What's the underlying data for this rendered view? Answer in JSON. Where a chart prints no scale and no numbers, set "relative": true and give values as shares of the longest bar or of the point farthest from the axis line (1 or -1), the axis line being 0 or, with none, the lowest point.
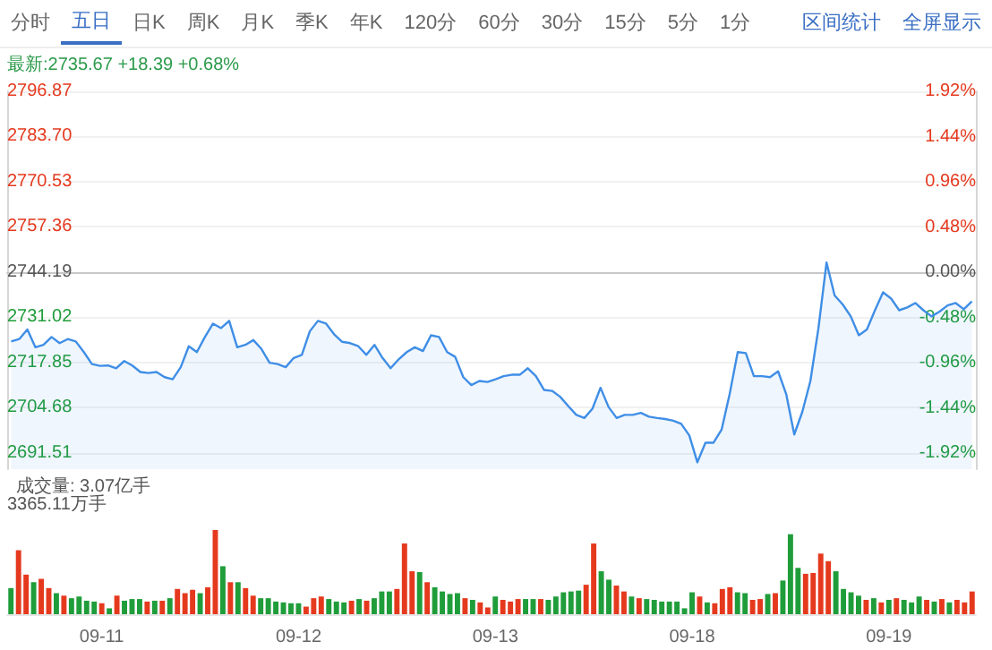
{
  "chart_data": [
    {
      "type": "area",
      "subtitle": "最新:2735.67 +18.39 +0.68%",
      "annotations": [
        "分时",
        "五日",
        "日K",
        "周K",
        "月K",
        "季K",
        "年K",
        "120分",
        "60分",
        "30分",
        "15分",
        "5分",
        "1分",
        "区间统计",
        "全屏显示"
      ],
      "color": "#3f8ee6",
      "categories": [
        null,
        null,
        null,
        null,
        null,
        null,
        null,
        null,
        null,
        null,
        null,
        null,
        null,
        null,
        null,
        null,
        null,
        null,
        null,
        null,
        null,
        null,
        null,
        null,
        null,
        null,
        null,
        null,
        null,
        null,
        null,
        null,
        null,
        null,
        null,
        null,
        null,
        null,
        null,
        null,
        null,
        null,
        null,
        null,
        null,
        null,
        null,
        null,
        null,
        null,
        null,
        null,
        null,
        null,
        null,
        null,
        null,
        null,
        null,
        null,
        null,
        null,
        null,
        null,
        null,
        null,
        null,
        null,
        null,
        null,
        null,
        null,
        null,
        null,
        null,
        null,
        null,
        null,
        null,
        null,
        null,
        null,
        null,
        null,
        null,
        null,
        null,
        null,
        null,
        null,
        null,
        null,
        null,
        null,
        null,
        null,
        null,
        null,
        null,
        null,
        null,
        null,
        null,
        null,
        null,
        null,
        null,
        null,
        null,
        null,
        null,
        null,
        null,
        null,
        null,
        null,
        null,
        null,
        null,
        null
      ],
      "values": [
        2724.0,
        2724.7,
        2727.5,
        2722.3,
        2723.0,
        2725.3,
        2723.5,
        2724.7,
        2724.0,
        2720.9,
        2717.4,
        2716.9,
        2717.0,
        2716.2,
        2718.3,
        2717.0,
        2715.1,
        2714.8,
        2715.1,
        2713.6,
        2713.0,
        2716.5,
        2722.6,
        2720.9,
        2725.3,
        2729.2,
        2727.9,
        2730.0,
        2722.3,
        2723.0,
        2724.4,
        2721.8,
        2717.8,
        2717.4,
        2716.5,
        2719.2,
        2720.1,
        2727.0,
        2730.0,
        2729.2,
        2726.1,
        2723.9,
        2723.5,
        2722.6,
        2720.1,
        2723.0,
        2719.2,
        2716.2,
        2718.8,
        2720.9,
        2722.3,
        2721.2,
        2725.8,
        2725.3,
        2720.9,
        2719.5,
        2713.6,
        2711.3,
        2712.5,
        2712.2,
        2713.0,
        2713.9,
        2714.3,
        2714.3,
        2716.2,
        2713.9,
        2709.9,
        2709.6,
        2707.9,
        2705.2,
        2702.6,
        2701.7,
        2704.4,
        2710.5,
        2704.9,
        2701.7,
        2702.6,
        2702.6,
        2703.2,
        2702.1,
        2701.7,
        2701.4,
        2700.9,
        2700.0,
        2696.6,
        2688.8,
        2694.5,
        2694.5,
        2698.3,
        2708.7,
        2720.9,
        2720.6,
        2713.9,
        2713.9,
        2713.6,
        2715.3,
        2708.7,
        2696.9,
        2703.5,
        2712.5,
        2727.9,
        2747.0,
        2737.4,
        2734.8,
        2731.3,
        2725.8,
        2727.5,
        2733.1,
        2738.3,
        2736.5,
        2733.1,
        2733.9,
        2735.2,
        2733.1,
        2731.3,
        2732.7,
        2734.5,
        2735.2,
        2733.4,
        2735.7
      ],
      "ylim": [
        2686.8,
        2796.87
      ],
      "yticks": [
        2796.87,
        {
          "value": 2783.7,
          "label": "2783.70"
        },
        2770.53,
        2757.36,
        2744.19,
        2731.02,
        2717.85,
        2704.68,
        2691.51
      ],
      "y2lim": [
        -2.09,
        1.92
      ],
      "y2ticks": [
        {
          "value": 1.92,
          "label": "1.92%"
        },
        {
          "value": 1.44,
          "label": "1.44%"
        },
        {
          "value": 0.96,
          "label": "0.96%"
        },
        {
          "value": 0.48,
          "label": "0.48%"
        },
        {
          "value": 0,
          "label": "0.00%"
        },
        {
          "value": -0.48,
          "label": "-0.48%"
        },
        {
          "value": -0.96,
          "label": "-0.96%"
        },
        {
          "value": -1.44,
          "label": "-1.44%"
        },
        {
          "value": -1.92,
          "label": "-1.92%"
        }
      ],
      "grid": "y",
      "tick_labels": "y"
    },
    {
      "type": "bar",
      "title": "成交量: 3.07亿手",
      "annotations": [
        "3365.11万手"
      ],
      "relative": true,
      "categories": [
        null,
        null,
        null,
        null,
        null,
        null,
        null,
        null,
        null,
        null,
        null,
        null,
        "09-11",
        null,
        null,
        null,
        null,
        null,
        null,
        null,
        null,
        null,
        null,
        null,
        null,
        null,
        null,
        null,
        null,
        null,
        null,
        null,
        null,
        null,
        null,
        null,
        null,
        null,
        "09-12",
        null,
        null,
        null,
        null,
        null,
        null,
        null,
        null,
        null,
        null,
        null,
        null,
        null,
        null,
        null,
        null,
        null,
        null,
        null,
        null,
        null,
        null,
        null,
        null,
        null,
        "09-13",
        null,
        null,
        null,
        null,
        null,
        null,
        null,
        null,
        null,
        null,
        null,
        null,
        null,
        null,
        null,
        null,
        null,
        null,
        null,
        null,
        null,
        null,
        null,
        null,
        null,
        "09-18",
        null,
        null,
        null,
        null,
        null,
        null,
        null,
        null,
        null,
        null,
        null,
        null,
        null,
        null,
        null,
        null,
        null,
        null,
        null,
        null,
        null,
        null,
        null,
        null,
        null,
        "09-19",
        null,
        null,
        null,
        null,
        null,
        null,
        null,
        null,
        null,
        null,
        null
      ],
      "values": [
        0.31,
        0.76,
        0.47,
        0.38,
        0.42,
        0.31,
        0.25,
        0.22,
        0.19,
        0.21,
        0.16,
        0.15,
        0.13,
        0.07,
        0.22,
        0.16,
        0.18,
        0.18,
        0.15,
        0.16,
        0.16,
        0.19,
        0.3,
        0.25,
        0.29,
        0.25,
        0.32,
        1.0,
        0.57,
        0.38,
        0.38,
        0.31,
        0.22,
        0.19,
        0.19,
        0.15,
        0.14,
        0.13,
        0.13,
        0.09,
        0.19,
        0.21,
        0.18,
        0.15,
        0.14,
        0.16,
        0.18,
        0.16,
        0.19,
        0.27,
        0.27,
        0.3,
        0.84,
        0.51,
        0.5,
        0.38,
        0.32,
        0.27,
        0.24,
        0.25,
        0.19,
        0.17,
        0.14,
        0.08,
        0.21,
        0.17,
        0.15,
        0.18,
        0.18,
        0.18,
        0.18,
        0.17,
        0.21,
        0.26,
        0.27,
        0.28,
        0.35,
        0.84,
        0.51,
        0.41,
        0.34,
        0.27,
        0.21,
        0.19,
        0.18,
        0.17,
        0.15,
        0.15,
        0.15,
        0.07,
        0.26,
        0.21,
        0.14,
        0.13,
        0.3,
        0.32,
        0.26,
        0.25,
        0.17,
        0.18,
        0.24,
        0.25,
        0.4,
        0.95,
        0.55,
        0.48,
        0.49,
        0.72,
        0.63,
        0.51,
        0.3,
        0.26,
        0.22,
        0.17,
        0.19,
        0.14,
        0.17,
        0.19,
        0.17,
        0.14,
        0.21,
        0.17,
        0.15,
        0.18,
        0.14,
        0.17,
        0.14,
        0.27
      ],
      "colors": [
        "#1f9d3a",
        "#e5391e",
        "#e5391e",
        "#1f9d3a",
        "#e5391e",
        "#e5391e",
        "#1f9d3a",
        "#e5391e",
        "#1f9d3a",
        "#1f9d3a",
        "#1f9d3a",
        "#1f9d3a",
        "#e5391e",
        "#1f9d3a",
        "#e5391e",
        "#1f9d3a",
        "#1f9d3a",
        "#1f9d3a",
        "#e5391e",
        "#1f9d3a",
        "#e5391e",
        "#1f9d3a",
        "#e5391e",
        "#e5391e",
        "#e5391e",
        "#1f9d3a",
        "#e5391e",
        "#e5391e",
        "#1f9d3a",
        "#e5391e",
        "#1f9d3a",
        "#e5391e",
        "#e5391e",
        "#1f9d3a",
        "#1f9d3a",
        "#1f9d3a",
        "#1f9d3a",
        "#1f9d3a",
        "#1f9d3a",
        "#e5391e",
        "#e5391e",
        "#e5391e",
        "#1f9d3a",
        "#1f9d3a",
        "#1f9d3a",
        "#e5391e",
        "#1f9d3a",
        "#e5391e",
        "#1f9d3a",
        "#1f9d3a",
        "#1f9d3a",
        "#e5391e",
        "#e5391e",
        "#e5391e",
        "#1f9d3a",
        "#e5391e",
        "#1f9d3a",
        "#1f9d3a",
        "#1f9d3a",
        "#1f9d3a",
        "#e5391e",
        "#1f9d3a",
        "#e5391e",
        "#e5391e",
        "#1f9d3a",
        "#e5391e",
        "#e5391e",
        "#e5391e",
        "#1f9d3a",
        "#1f9d3a",
        "#e5391e",
        "#1f9d3a",
        "#1f9d3a",
        "#1f9d3a",
        "#1f9d3a",
        "#1f9d3a",
        "#e5391e",
        "#e5391e",
        "#1f9d3a",
        "#1f9d3a",
        "#e5391e",
        "#e5391e",
        "#1f9d3a",
        "#e5391e",
        "#1f9d3a",
        "#1f9d3a",
        "#1f9d3a",
        "#1f9d3a",
        "#1f9d3a",
        "#1f9d3a",
        "#1f9d3a",
        "#e5391e",
        "#1f9d3a",
        "#e5391e",
        "#e5391e",
        "#e5391e",
        "#1f9d3a",
        "#1f9d3a",
        "#e5391e",
        "#e5391e",
        "#1f9d3a",
        "#e5391e",
        "#1f9d3a",
        "#1f9d3a",
        "#1f9d3a",
        "#e5391e",
        "#e5391e",
        "#e5391e",
        "#e5391e",
        "#1f9d3a",
        "#1f9d3a",
        "#1f9d3a",
        "#1f9d3a",
        "#e5391e",
        "#1f9d3a",
        "#e5391e",
        "#1f9d3a",
        "#e5391e",
        "#1f9d3a",
        "#1f9d3a",
        "#1f9d3a",
        "#e5391e",
        "#1f9d3a",
        "#e5391e",
        "#1f9d3a",
        "#e5391e",
        "#e5391e",
        "#e5391e"
      ]
    }
  ]
}
